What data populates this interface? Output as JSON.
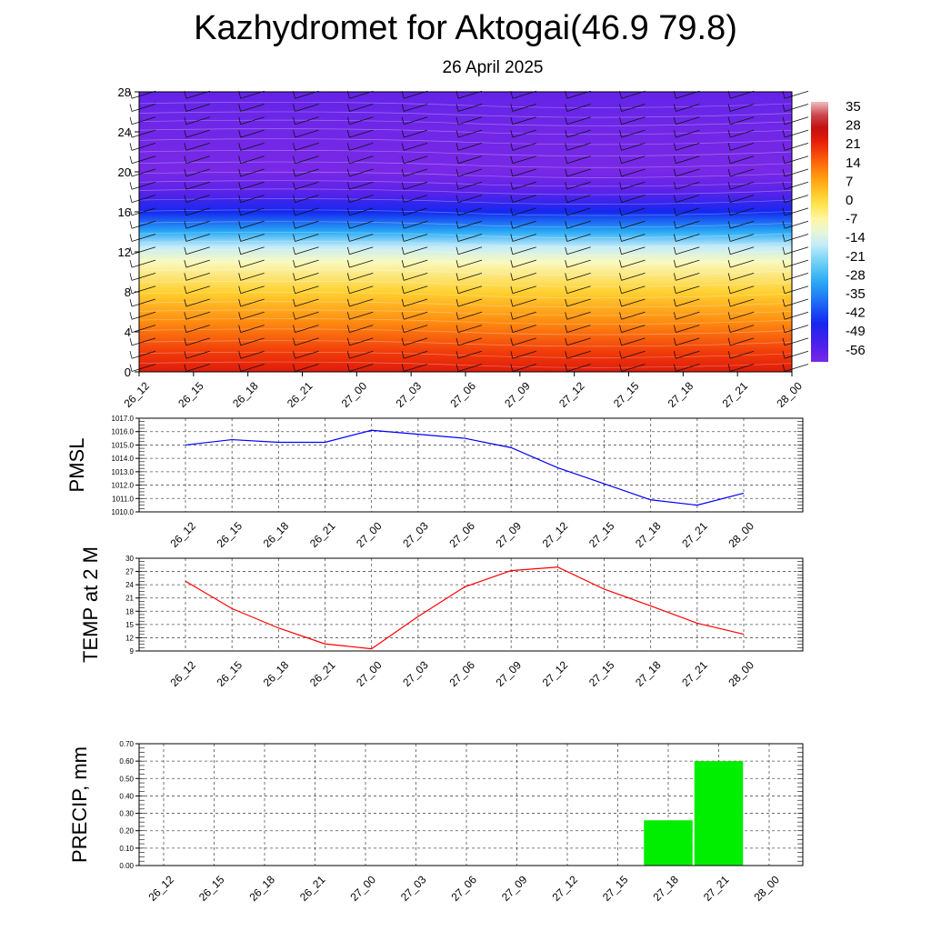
{
  "title": "Kazhydromet for Aktogai(46.9 79.8)",
  "subtitle": "26 April 2025",
  "colorbar_labels": [
    "35",
    "28",
    "21",
    "14",
    "7",
    "0",
    "-7",
    "-14",
    "-21",
    "-28",
    "-35",
    "-42",
    "-49",
    "-56"
  ],
  "colors": {
    "pmsl_line": "#0000ff",
    "temp_line": "#ff0000",
    "precip_bar": "#00ee00"
  },
  "chart_data": [
    {
      "type": "heatmap",
      "name_hint": "cross-section temperature with wind barbs",
      "x_categories": [
        "26_12",
        "26_15",
        "26_18",
        "26_21",
        "27_00",
        "27_03",
        "27_06",
        "27_09",
        "27_12",
        "27_15",
        "27_18",
        "27_21",
        "28_00"
      ],
      "y_tick_labels": [
        "0",
        "4",
        "8",
        "12",
        "16",
        "20",
        "24",
        "28"
      ],
      "ylim": [
        0,
        28
      ],
      "colorbar": {
        "min": -56,
        "max": 35,
        "labels": [
          "35",
          "28",
          "21",
          "14",
          "7",
          "0",
          "-7",
          "-14",
          "-21",
          "-28",
          "-35",
          "-42",
          "-49",
          "-56"
        ]
      },
      "bands": [
        {
          "y": 0,
          "value": 22
        },
        {
          "y": 2,
          "value": 18
        },
        {
          "y": 5,
          "value": 10
        },
        {
          "y": 8,
          "value": 2
        },
        {
          "y": 11,
          "value": -8
        },
        {
          "y": 12.5,
          "value": -15
        },
        {
          "y": 14,
          "value": -28
        },
        {
          "y": 16,
          "value": -42
        },
        {
          "y": 18,
          "value": -52
        },
        {
          "y": 20,
          "value": -56
        },
        {
          "y": 24,
          "value": -55
        },
        {
          "y": 28,
          "value": -53
        }
      ],
      "grid": true
    },
    {
      "type": "line",
      "ylabel": "PMSL",
      "x_categories": [
        "26_12",
        "26_15",
        "26_18",
        "26_21",
        "27_00",
        "27_03",
        "27_06",
        "27_09",
        "27_12",
        "27_15",
        "27_18",
        "27_21",
        "28_00"
      ],
      "y_tick_labels": [
        "1010.0",
        "1011.0",
        "1012.0",
        "1013.0",
        "1014.0",
        "1015.0",
        "1016.0",
        "1017.0"
      ],
      "ylim": [
        1010,
        1017
      ],
      "values": [
        1015.0,
        1015.4,
        1015.2,
        1015.2,
        1016.1,
        1015.8,
        1015.5,
        1014.8,
        1013.3,
        1012.1,
        1010.9,
        1010.5,
        1011.4
      ],
      "grid": true
    },
    {
      "type": "line",
      "ylabel": "TEMP at 2 M",
      "x_categories": [
        "26_12",
        "26_15",
        "26_18",
        "26_21",
        "27_00",
        "27_03",
        "27_06",
        "27_09",
        "27_12",
        "27_15",
        "27_18",
        "27_21",
        "28_00"
      ],
      "y_tick_labels": [
        "9",
        "12",
        "15",
        "18",
        "21",
        "24",
        "27",
        "30"
      ],
      "ylim": [
        9,
        30
      ],
      "values": [
        24.8,
        18.6,
        14.2,
        10.6,
        9.5,
        16.8,
        23.5,
        27.2,
        28.0,
        23.0,
        19.2,
        15.3,
        12.8
      ],
      "grid": true
    },
    {
      "type": "bar",
      "ylabel": "PRECIP, mm",
      "x_categories": [
        "26_12",
        "26_15",
        "26_18",
        "26_21",
        "27_00",
        "27_03",
        "27_06",
        "27_09",
        "27_12",
        "27_15",
        "27_18",
        "27_21",
        "28_00"
      ],
      "y_tick_labels": [
        "0.00",
        "0.10",
        "0.20",
        "0.30",
        "0.40",
        "0.50",
        "0.60",
        "0.70"
      ],
      "ylim": [
        0,
        0.7
      ],
      "values": [
        0,
        0,
        0,
        0,
        0,
        0,
        0,
        0,
        0,
        0,
        0.26,
        0.6,
        0
      ],
      "grid": true
    }
  ]
}
